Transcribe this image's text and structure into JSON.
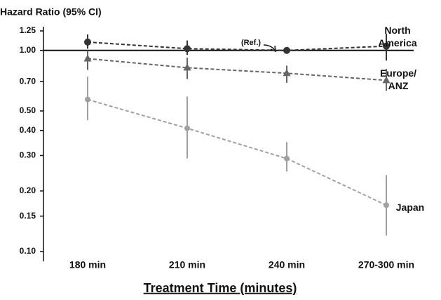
{
  "chart_data": {
    "type": "line",
    "title": "Hazard Ratio (95% CI)",
    "x_label": "Treatment Time (minutes)",
    "annotation": "(Ref.)",
    "categories": [
      "180 min",
      "210 min",
      "240 min",
      "270-300 min"
    ],
    "log_scale": true,
    "ylim": [
      0.1,
      1.25
    ],
    "yticks": [
      1.25,
      {
        "value": 1,
        "label": "1.00"
      },
      {
        "value": 0.7,
        "label": "0.70"
      },
      {
        "value": 0.5,
        "label": "0.50"
      },
      {
        "value": 0.4,
        "label": "0.40"
      },
      {
        "value": 0.3,
        "label": "0.30"
      },
      {
        "value": 0.2,
        "label": "0.20"
      },
      0.15,
      {
        "value": 0.1,
        "label": "0.10"
      }
    ],
    "series": [
      {
        "name": "North America",
        "color": "#333333",
        "marker": "circle",
        "values": [
          1.1,
          1.02,
          1.0,
          1.05
        ],
        "lower": [
          1.02,
          0.95,
          null,
          0.89
        ],
        "upper": [
          1.2,
          1.12,
          null,
          1.21
        ]
      },
      {
        "name": "Europe/ANZ",
        "color": "#666666",
        "marker": "triangle",
        "values": [
          0.91,
          0.82,
          0.77,
          0.71
        ],
        "lower": [
          0.8,
          0.72,
          0.69,
          0.63
        ],
        "upper": [
          1.0,
          0.92,
          0.84,
          0.81
        ]
      },
      {
        "name": "Japan",
        "color": "#a0a0a0",
        "marker": "circle",
        "values": [
          0.57,
          0.41,
          0.29,
          0.17
        ],
        "lower": [
          0.45,
          0.29,
          0.25,
          0.12
        ],
        "upper": [
          0.74,
          0.59,
          0.35,
          0.24
        ]
      }
    ]
  }
}
